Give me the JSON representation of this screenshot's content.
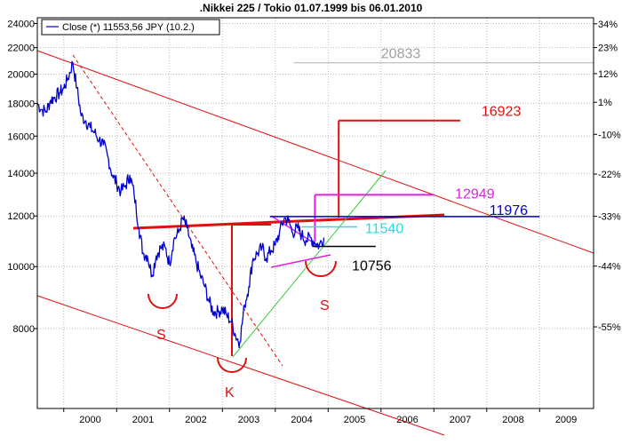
{
  "chart_data": {
    "type": "line",
    "title": ".Nikkei 225 / Tokio 01.07.1999 bis 06.01.2010",
    "legend": {
      "label": "Close (*) 11553,56 JPY (10.2.)",
      "position": "top-left",
      "color": "#0000cc"
    },
    "xlabel": "",
    "ylabel": "",
    "x_ticks": [
      "2000",
      "2001",
      "2002",
      "2003",
      "2004",
      "2005",
      "2006",
      "2007",
      "2008",
      "2009"
    ],
    "y_ticks_left": [
      8000,
      10000,
      12000,
      14000,
      16000,
      18000,
      20000,
      22000,
      24000
    ],
    "y_ticks_right": [
      "34%",
      "23%",
      "12%",
      "1%",
      "-10%",
      "-22%",
      "-33%",
      "-44%",
      "-55%"
    ],
    "ylim": [
      6000,
      24500
    ],
    "xlim": [
      1999.5,
      2010.02
    ],
    "y_scale": "log",
    "grid": true,
    "series": [
      {
        "name": "Close",
        "color": "#0000cc",
        "x": [
          1999.5,
          1999.58,
          1999.67,
          1999.75,
          1999.83,
          1999.92,
          2000.0,
          2000.08,
          2000.17,
          2000.25,
          2000.33,
          2000.42,
          2000.5,
          2000.58,
          2000.67,
          2000.75,
          2000.83,
          2000.92,
          2001.0,
          2001.08,
          2001.17,
          2001.25,
          2001.33,
          2001.42,
          2001.5,
          2001.58,
          2001.67,
          2001.75,
          2001.83,
          2001.92,
          2002.0,
          2002.08,
          2002.17,
          2002.25,
          2002.33,
          2002.42,
          2002.5,
          2002.58,
          2002.67,
          2002.75,
          2002.83,
          2002.92,
          2003.0,
          2003.08,
          2003.17,
          2003.25,
          2003.33,
          2003.42,
          2003.5,
          2003.58,
          2003.67,
          2003.75,
          2003.83,
          2003.92,
          2004.0,
          2004.08,
          2004.17,
          2004.25,
          2004.33,
          2004.42,
          2004.5,
          2004.58,
          2004.67,
          2004.75,
          2004.83,
          2004.92
        ],
        "values": [
          18000,
          17600,
          17500,
          18200,
          18400,
          18700,
          19000,
          19700,
          20833,
          19000,
          17200,
          16900,
          16500,
          16200,
          15800,
          15500,
          14900,
          13900,
          13500,
          13100,
          13400,
          13900,
          13000,
          11500,
          10500,
          10400,
          9700,
          10400,
          10700,
          10700,
          10100,
          11000,
          11300,
          11900,
          11500,
          10700,
          10200,
          9700,
          9300,
          8800,
          8500,
          8500,
          8600,
          8400,
          8200,
          7800,
          7620,
          8700,
          9300,
          10300,
          10500,
          10700,
          10300,
          10600,
          10800,
          11300,
          11900,
          11800,
          11300,
          11500,
          11200,
          11000,
          11100,
          10900,
          10800,
          11100
        ]
      }
    ],
    "annotations": {
      "levels": [
        {
          "label": "20833",
          "value": 20833,
          "color": "#a0a0a0"
        },
        {
          "label": "16923",
          "value": 16923,
          "color": "#e01010"
        },
        {
          "label": "12949",
          "value": 12949,
          "color": "#e020e0"
        },
        {
          "label": "11976",
          "value": 11976,
          "color": "#0000cc"
        },
        {
          "label": "11540",
          "value": 11540,
          "color": "#20e0e0"
        },
        {
          "label": "10756",
          "value": 10756,
          "color": "#000000"
        }
      ],
      "pattern_labels": [
        {
          "label": "S",
          "color": "#e01010"
        },
        {
          "label": "K",
          "color": "#e01010"
        },
        {
          "label": "S",
          "color": "#e01010"
        }
      ]
    }
  }
}
